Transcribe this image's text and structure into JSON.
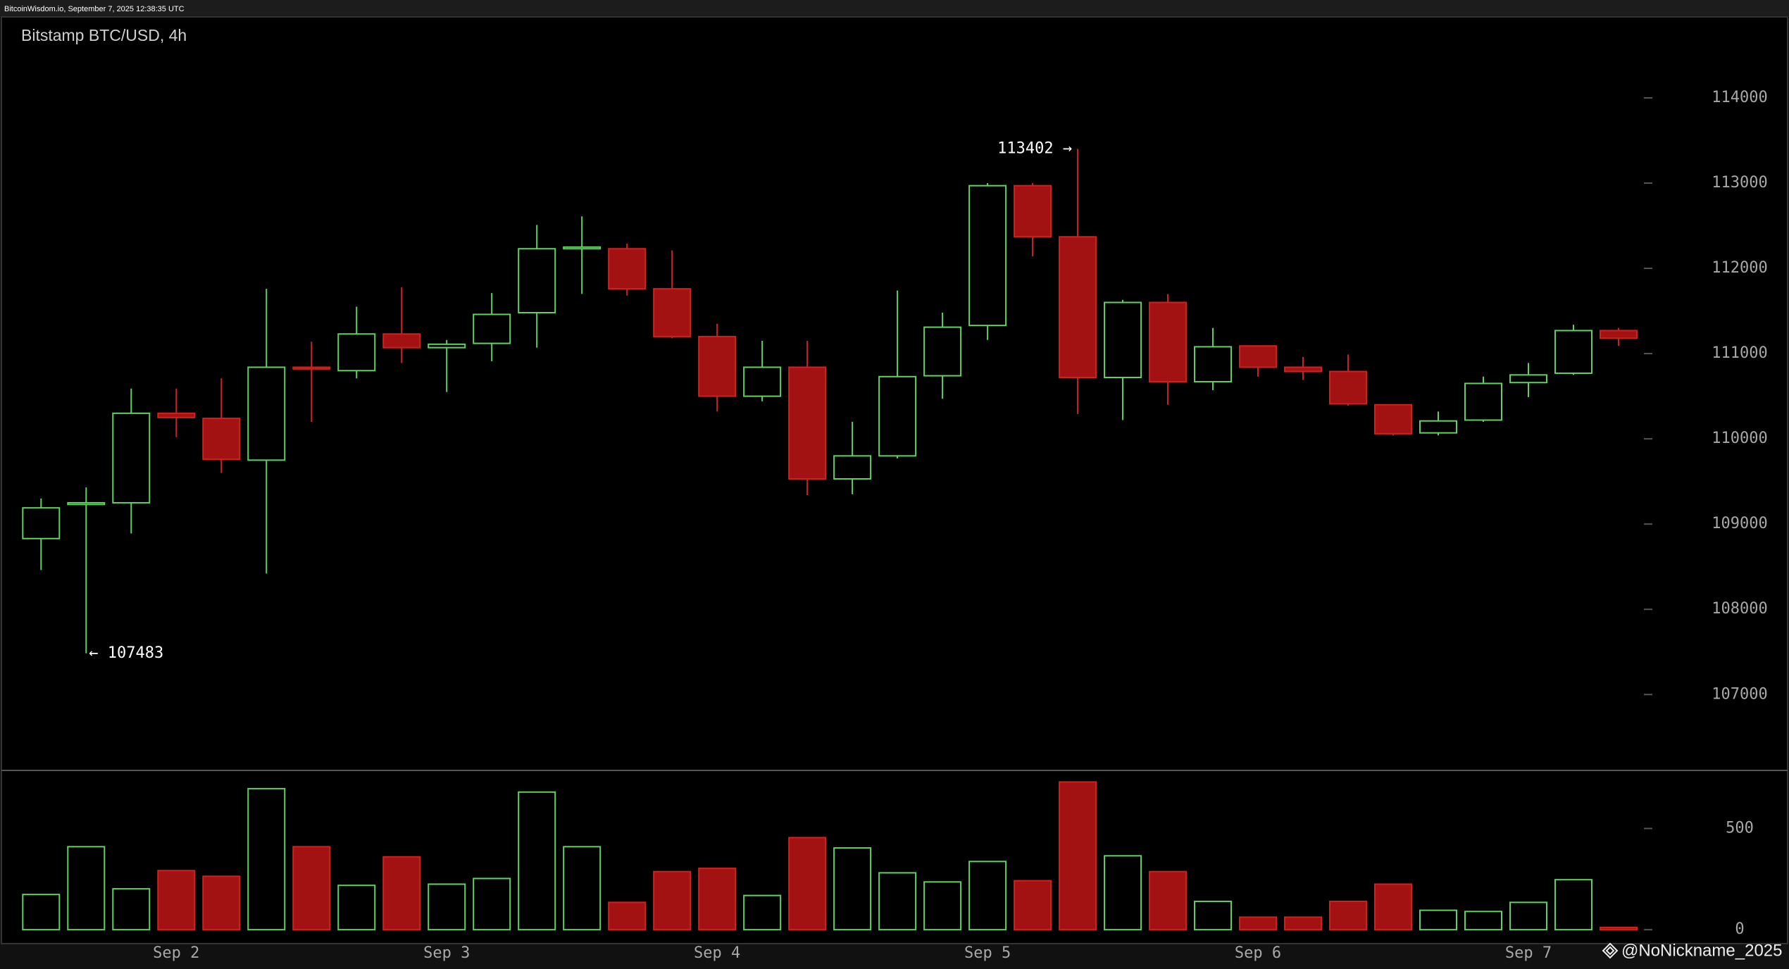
{
  "header": "BitcoinWisdom.io, September 7, 2025 12:38:35 UTC",
  "watermark": "@NoNickname_2025",
  "chart_data": [
    {
      "type": "candlestick",
      "title": "Bitstamp BTC/USD, 4h",
      "up_color": "#5fd35f",
      "down_color": "#a31212",
      "open": [
        108830,
        109230,
        109250,
        110300,
        110240,
        109750,
        110840,
        110800,
        111230,
        111070,
        111120,
        111480,
        112230,
        112230,
        111760,
        111200,
        110500,
        110840,
        109530,
        109800,
        110740,
        111330,
        112970,
        112370,
        110720,
        111600,
        110670,
        111090,
        110840,
        110790,
        110400,
        110070,
        110220,
        110660,
        110770,
        111270
      ],
      "high": [
        109300,
        109430,
        110590,
        110590,
        110710,
        111760,
        111140,
        111550,
        111780,
        111160,
        111710,
        112510,
        112610,
        112290,
        112210,
        111350,
        111150,
        111150,
        110200,
        111740,
        111480,
        113000,
        113000,
        113402,
        111630,
        111700,
        111300,
        111090,
        110960,
        110990,
        110400,
        110320,
        110730,
        110890,
        111340,
        111300
      ],
      "low": [
        108460,
        107483,
        108890,
        110020,
        109600,
        108420,
        110200,
        110710,
        110890,
        110550,
        110910,
        111070,
        111700,
        111680,
        111180,
        110320,
        110440,
        109340,
        109350,
        109770,
        110470,
        111160,
        112140,
        110290,
        110220,
        110400,
        110570,
        110730,
        110690,
        110390,
        110040,
        110040,
        110200,
        110490,
        110750,
        111090
      ],
      "close": [
        109190,
        109250,
        110300,
        110250,
        109760,
        110840,
        110820,
        111230,
        111070,
        111110,
        111460,
        112230,
        112250,
        111760,
        111200,
        110500,
        110840,
        109530,
        109800,
        110730,
        111310,
        112970,
        112370,
        110720,
        111600,
        110670,
        111080,
        110840,
        110790,
        110410,
        110060,
        110210,
        110650,
        110750,
        111270,
        111180
      ],
      "annotations": [
        {
          "text": "113402 →"
        },
        {
          "text": "← 107483"
        }
      ],
      "ylim": [
        106110,
        114950
      ],
      "yticks": [
        107000,
        108000,
        109000,
        110000,
        111000,
        112000,
        113000,
        114000
      ]
    },
    {
      "type": "bar",
      "name": "volume",
      "categories": [
        null,
        null,
        null,
        "Sep 2",
        null,
        null,
        null,
        null,
        null,
        "Sep 3",
        null,
        null,
        null,
        null,
        null,
        "Sep 4",
        null,
        null,
        null,
        null,
        null,
        "Sep 5",
        null,
        null,
        null,
        null,
        null,
        "Sep 6",
        null,
        null,
        null,
        null,
        null,
        "Sep 7",
        null,
        null
      ],
      "values": [
        174,
        410,
        202,
        292,
        264,
        697,
        410,
        219,
        360,
        225,
        253,
        680,
        410,
        135,
        287,
        303,
        169,
        455,
        404,
        281,
        236,
        337,
        242,
        730,
        365,
        287,
        140,
        62,
        62,
        140,
        225,
        96,
        90,
        135,
        247,
        11
      ],
      "ylim": [
        -62,
        787
      ],
      "yticks": [
        0,
        500
      ]
    }
  ]
}
